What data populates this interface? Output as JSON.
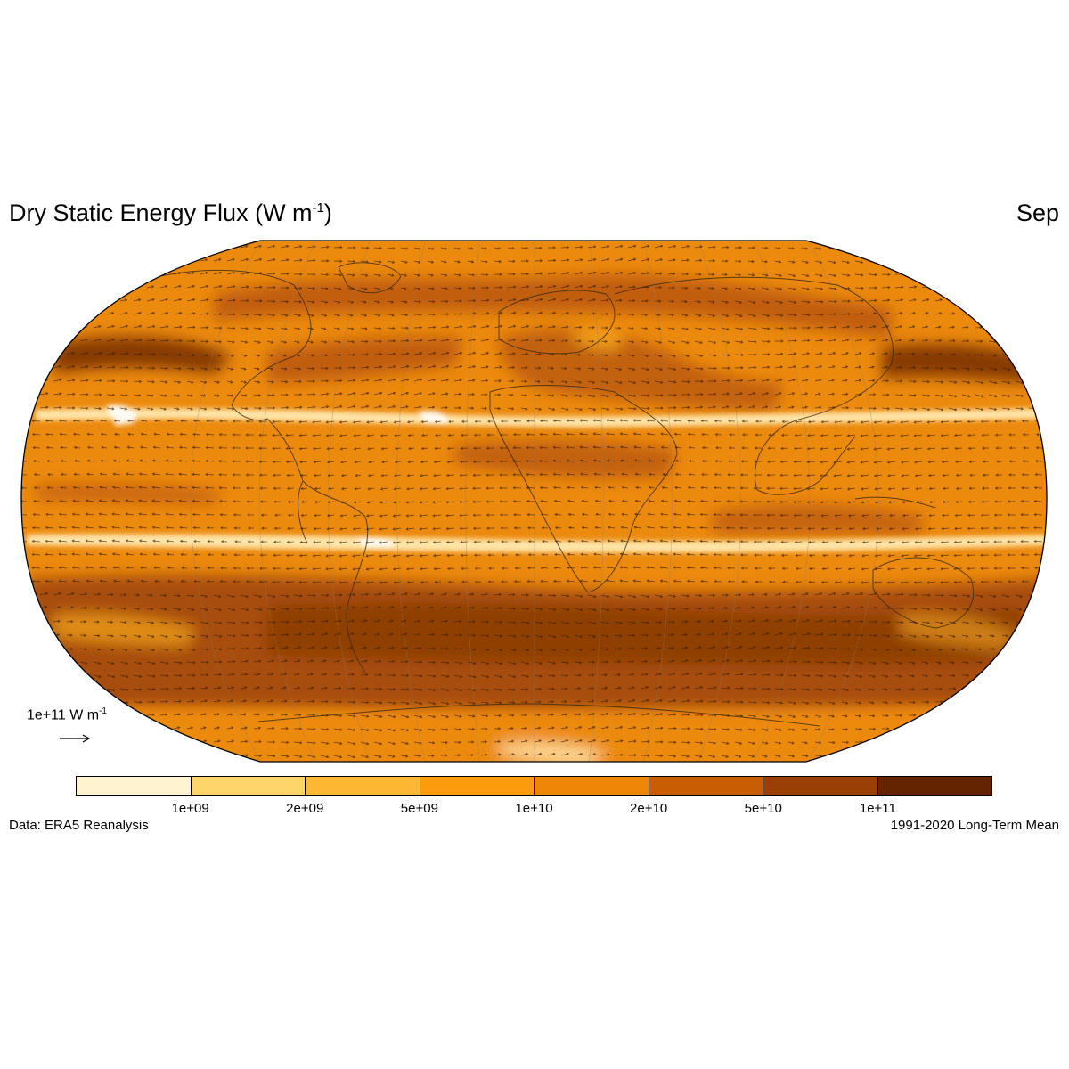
{
  "title": {
    "main": "Dry Static Energy Flux (W m",
    "sup": "-1",
    "close": ")"
  },
  "month": "Sep",
  "reference_vector": {
    "label": "1e+11 W m",
    "sup": "-1"
  },
  "colorbar": {
    "colors": [
      "#fff3d0",
      "#fdd56a",
      "#fdb833",
      "#fc9c0c",
      "#f08608",
      "#c85d04",
      "#9a3f05",
      "#652401"
    ],
    "labels": [
      "1e+09",
      "2e+09",
      "5e+09",
      "1e+10",
      "2e+10",
      "5e+10",
      "1e+11"
    ]
  },
  "footer": {
    "source": "Data: ERA5 Reanalysis",
    "period": "1991-2020 Long-Term Mean"
  },
  "map_style": {
    "projection": "robinson",
    "base_color": "#ec8a0e",
    "band_colors": {
      "light": "#ffe9b0",
      "mid": "#f7a81c",
      "dark": "#b85510",
      "darker": "#a04708",
      "darkest": "#7a3206"
    },
    "vector_color": "#3a2208",
    "coastline_color": "#3a2a10"
  }
}
